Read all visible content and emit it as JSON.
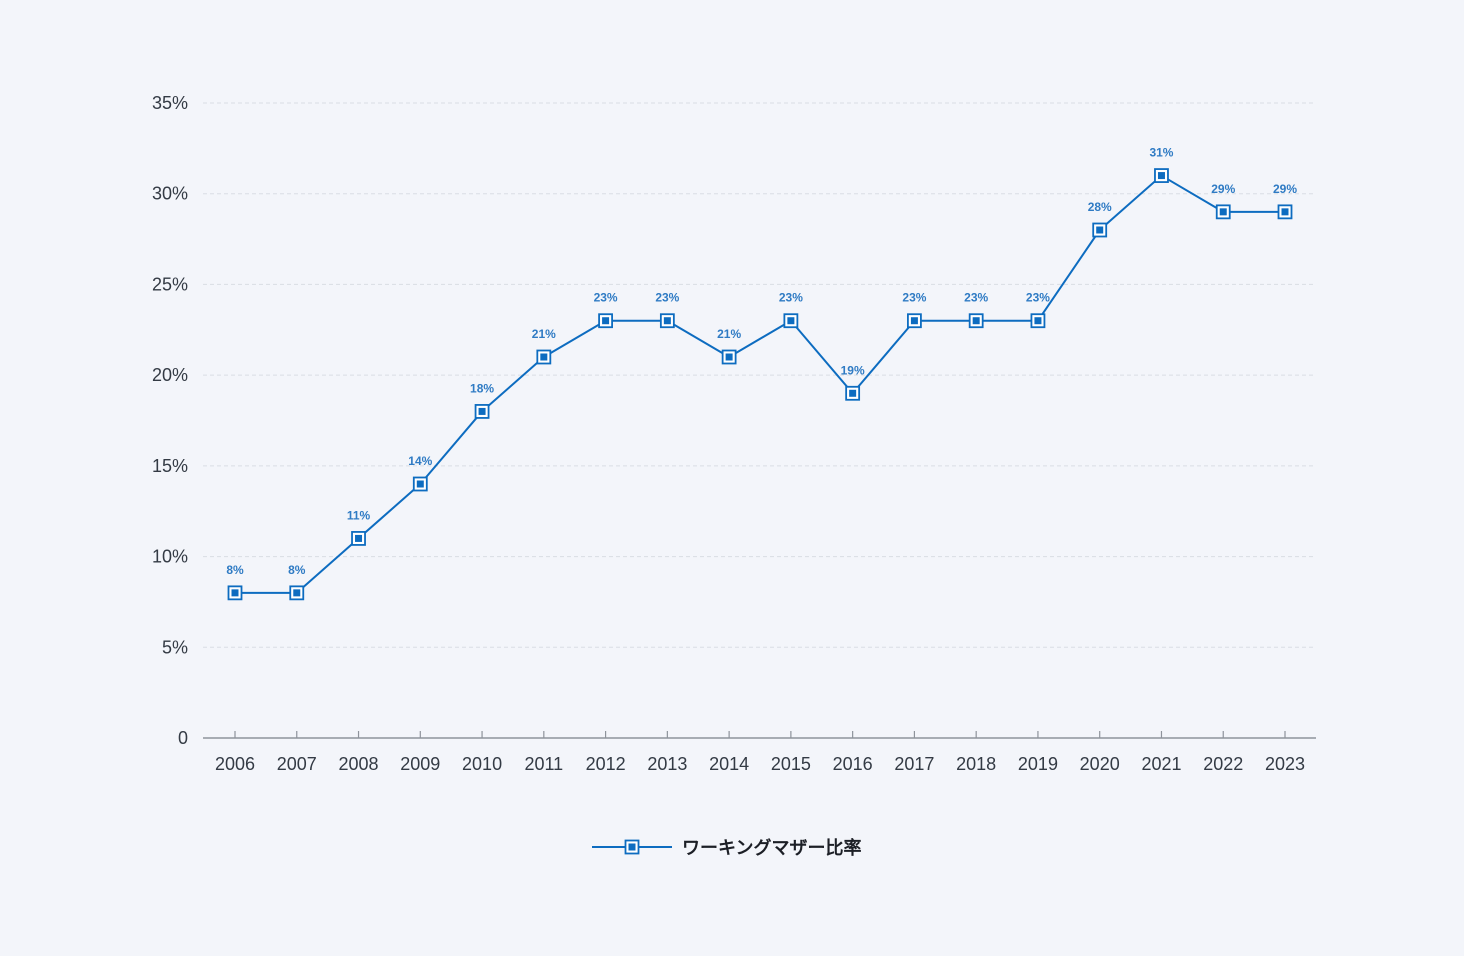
{
  "chart_data": {
    "type": "line",
    "title": "",
    "xlabel": "",
    "ylabel": "",
    "categories": [
      "2006",
      "2007",
      "2008",
      "2009",
      "2010",
      "2011",
      "2012",
      "2013",
      "2014",
      "2015",
      "2016",
      "2017",
      "2018",
      "2019",
      "2020",
      "2021",
      "2022",
      "2023"
    ],
    "series": [
      {
        "name": "ワーキングマザー比率",
        "values": [
          8,
          8,
          11,
          14,
          18,
          21,
          23,
          23,
          21,
          23,
          19,
          23,
          23,
          23,
          28,
          31,
          29,
          29
        ],
        "data_labels": [
          "8%",
          "8%",
          "11%",
          "14%",
          "18%",
          "21%",
          "23%",
          "23%",
          "21%",
          "23%",
          "19%",
          "23%",
          "23%",
          "23%",
          "28%",
          "31%",
          "29%",
          "29%"
        ],
        "color": "#0d6cc0",
        "marker": "square"
      }
    ],
    "ylim": [
      0,
      35
    ],
    "yticks": [
      0,
      5,
      10,
      15,
      20,
      25,
      30,
      35
    ],
    "ytick_labels": [
      "0",
      "5%",
      "10%",
      "15%",
      "20%",
      "25%",
      "30%",
      "35%"
    ],
    "grid": true,
    "legend_position": "bottom-center"
  },
  "colors": {
    "background": "#f3f5fa",
    "line": "#0d6cc0",
    "grid": "#d9dde4",
    "axis": "#8e939b"
  }
}
